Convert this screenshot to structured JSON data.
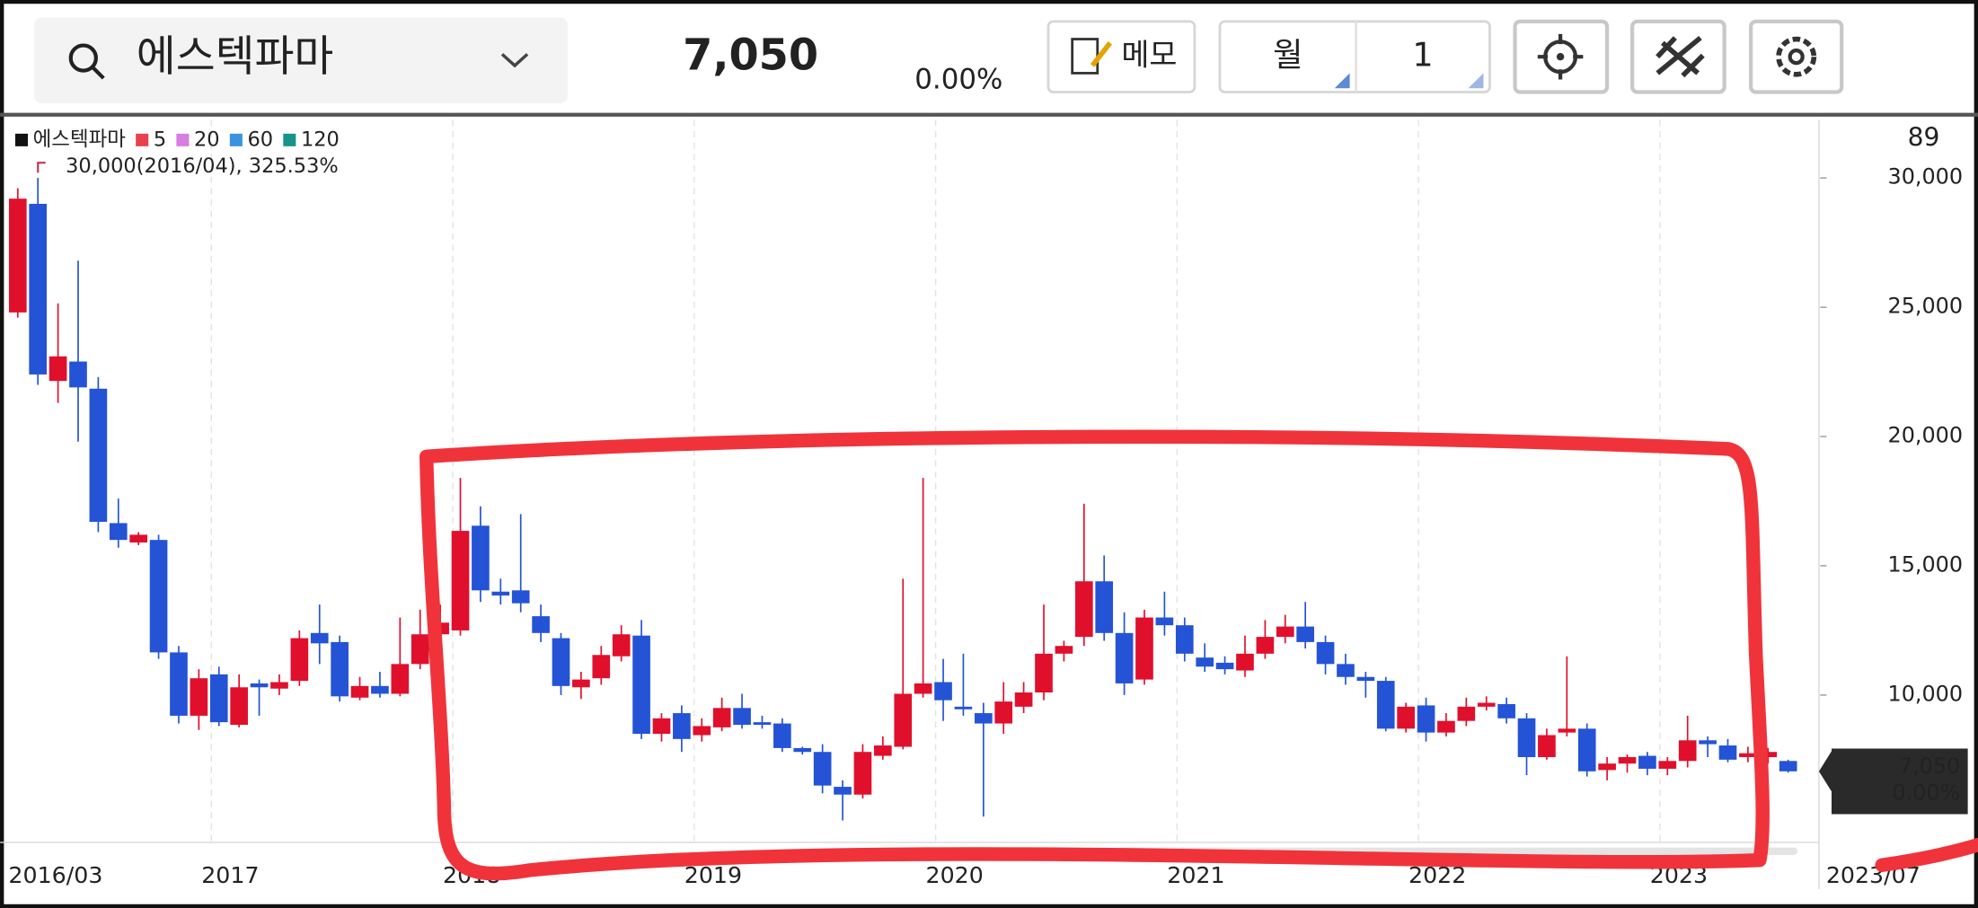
{
  "header": {
    "stock_name": "에스텍파마",
    "price": "7,050",
    "change": "0.00%",
    "memo_button": "메모",
    "period_button": "월",
    "period_count": "1"
  },
  "chart_data": {
    "type": "candlestick",
    "series_name": "에스텍파마",
    "up_color": "#e0102c",
    "down_color": "#2453d6",
    "indicators": [
      {
        "name": "5",
        "color": "#e8424f"
      },
      {
        "name": "20",
        "color": "#d77ee0"
      },
      {
        "name": "60",
        "color": "#3b93e0"
      },
      {
        "name": "120",
        "color": "#17948a"
      }
    ],
    "max_annotation": "30,000(2016/04), 325.53%",
    "candle_count": 89,
    "last_price": {
      "value": 7050,
      "label": "7,050"
    },
    "last_change": "0.00%",
    "categories": [
      "2016/03",
      null,
      null,
      null,
      null,
      null,
      null,
      null,
      null,
      null,
      "2017",
      null,
      null,
      null,
      null,
      null,
      null,
      null,
      null,
      null,
      null,
      null,
      "2018",
      null,
      null,
      null,
      null,
      null,
      null,
      null,
      null,
      null,
      null,
      null,
      "2019",
      null,
      null,
      null,
      null,
      null,
      null,
      null,
      null,
      null,
      null,
      null,
      "2020",
      null,
      null,
      null,
      null,
      null,
      null,
      null,
      null,
      null,
      null,
      null,
      "2021",
      null,
      null,
      null,
      null,
      null,
      null,
      null,
      null,
      null,
      null,
      null,
      "2022",
      null,
      null,
      null,
      null,
      null,
      null,
      null,
      null,
      null,
      null,
      null,
      "2023",
      null,
      null,
      null,
      null,
      null,
      "2023/07"
    ],
    "open": [
      24800,
      29000,
      22150,
      22900,
      21850,
      16650,
      15900,
      16000,
      11650,
      9200,
      10800,
      8850,
      10450,
      10250,
      10550,
      12400,
      12050,
      9900,
      10350,
      10050,
      11200,
      12350,
      12500,
      16550,
      14000,
      14050,
      13050,
      12200,
      10300,
      10650,
      11500,
      12300,
      8500,
      9300,
      8450,
      8750,
      9500,
      8950,
      8900,
      7950,
      7800,
      6450,
      6150,
      7650,
      8000,
      10050,
      10500,
      9550,
      9300,
      8900,
      9550,
      10100,
      11600,
      12250,
      14400,
      12400,
      10600,
      13000,
      12700,
      11450,
      11250,
      10950,
      11600,
      12250,
      12650,
      12050,
      11200,
      10700,
      10550,
      8700,
      9600,
      8550,
      9000,
      9550,
      9650,
      9100,
      7600,
      8550,
      8700,
      7100,
      7350,
      7650,
      7150,
      7450,
      8250,
      8050,
      7600,
      7600,
      7450
    ],
    "high": [
      29600,
      30000,
      25150,
      26800,
      22300,
      17600,
      16300,
      16200,
      11900,
      11000,
      11100,
      10800,
      10600,
      10800,
      12500,
      13500,
      12300,
      10700,
      10900,
      13000,
      13300,
      13500,
      18400,
      17300,
      14500,
      17000,
      13500,
      12400,
      10900,
      11900,
      12700,
      12900,
      9300,
      9600,
      9100,
      9900,
      10050,
      9200,
      9100,
      8000,
      8100,
      6700,
      8100,
      8400,
      14500,
      18400,
      11400,
      11600,
      9700,
      10500,
      10500,
      13500,
      12100,
      17400,
      15400,
      13200,
      13300,
      14000,
      13000,
      12000,
      11500,
      12300,
      12900,
      13100,
      13600,
      12300,
      11600,
      10900,
      10700,
      9700,
      9900,
      9300,
      9900,
      9950,
      9900,
      9300,
      8700,
      11500,
      8900,
      7600,
      7700,
      7800,
      7600,
      9200,
      8400,
      8300,
      8000,
      7950,
      7500
    ],
    "low": [
      24600,
      22000,
      21300,
      19800,
      16300,
      15700,
      15800,
      11400,
      8900,
      8650,
      8800,
      8750,
      9200,
      10000,
      10350,
      11200,
      9750,
      9800,
      9900,
      9950,
      11000,
      12000,
      12300,
      13600,
      13500,
      13200,
      12050,
      10000,
      9850,
      10400,
      11300,
      8300,
      8200,
      7800,
      8200,
      8600,
      8700,
      8700,
      7800,
      7700,
      6200,
      5150,
      6000,
      7500,
      7900,
      9900,
      9000,
      9200,
      5300,
      8500,
      9300,
      9800,
      11300,
      11900,
      12100,
      10000,
      10400,
      12300,
      11300,
      10900,
      10800,
      10700,
      11400,
      12000,
      11800,
      10800,
      10400,
      9900,
      8600,
      8550,
      8200,
      8400,
      8800,
      9400,
      8900,
      6900,
      7500,
      8400,
      6850,
      6700,
      7000,
      6900,
      6900,
      7200,
      7600,
      7400,
      7400,
      7350,
      7000
    ],
    "close": [
      29200,
      22400,
      23100,
      21900,
      16700,
      16000,
      16200,
      11650,
      9200,
      10650,
      8950,
      10300,
      10300,
      10500,
      12200,
      12000,
      9950,
      10350,
      10050,
      11200,
      12350,
      12800,
      16350,
      14050,
      13850,
      13550,
      12400,
      10350,
      10600,
      11550,
      12350,
      8500,
      9100,
      8300,
      8800,
      9500,
      8850,
      8850,
      7950,
      7800,
      6500,
      6150,
      7800,
      8050,
      10050,
      10450,
      9800,
      9450,
      8900,
      9750,
      10100,
      11600,
      11900,
      14400,
      12400,
      10450,
      13000,
      12700,
      11600,
      11100,
      11000,
      11600,
      12250,
      12650,
      12050,
      11200,
      10700,
      10550,
      8700,
      9550,
      8550,
      9000,
      9550,
      9700,
      9100,
      7600,
      8450,
      8700,
      7050,
      7350,
      7600,
      7150,
      7450,
      8250,
      8100,
      7500,
      7750,
      7800,
      7050
    ],
    "ylim": [
      4300,
      32250
    ],
    "yticks": [
      {
        "value": 10000,
        "label": "10,000"
      },
      {
        "value": 15000,
        "label": "15,000"
      },
      {
        "value": 20000,
        "label": "20,000"
      },
      {
        "value": 25000,
        "label": "25,000"
      },
      {
        "value": 30000,
        "label": "30,000"
      }
    ]
  }
}
